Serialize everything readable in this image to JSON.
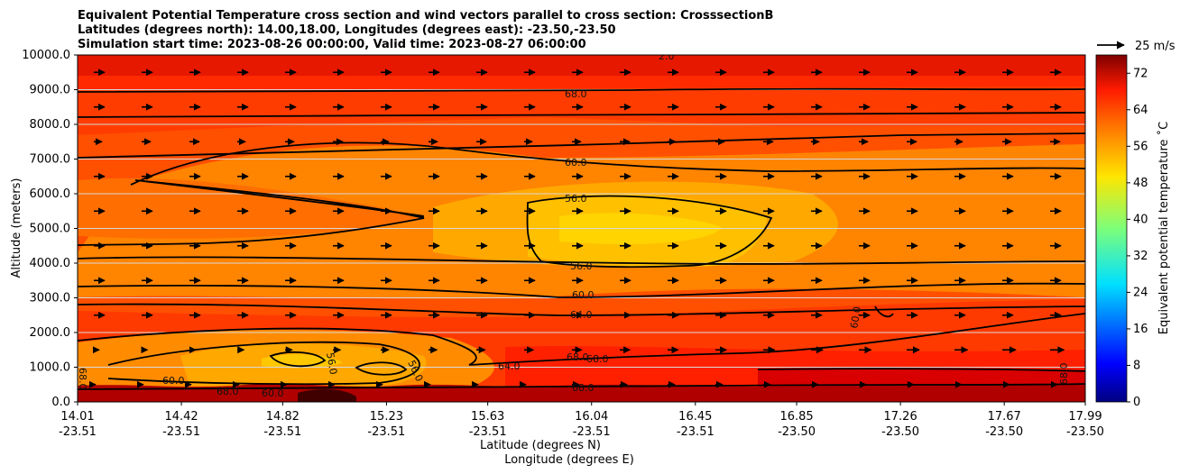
{
  "chart_data": {
    "type": "heatmap",
    "title_lines": [
      "Equivalent Potential Temperature cross section and wind vectors parallel to cross section: CrosssectionB",
      "Latitudes (degrees north): 14.00,18.00, Longitudes (degrees east): -23.50,-23.50",
      "Simulation start time: 2023-08-26 00:00:00, Valid time: 2023-08-27 06:00:00"
    ],
    "xlabel_lat": "Latitude (degrees N)",
    "xlabel_lon": "Longitude (degrees E)",
    "ylabel": "Altitude (meters)",
    "x_ticks": [
      {
        "lat": "14.01",
        "lon": "-23.51"
      },
      {
        "lat": "14.42",
        "lon": "-23.51"
      },
      {
        "lat": "14.82",
        "lon": "-23.51"
      },
      {
        "lat": "15.23",
        "lon": "-23.51"
      },
      {
        "lat": "15.63",
        "lon": "-23.51"
      },
      {
        "lat": "16.04",
        "lon": "-23.51"
      },
      {
        "lat": "16.45",
        "lon": "-23.51"
      },
      {
        "lat": "16.85",
        "lon": "-23.50"
      },
      {
        "lat": "17.26",
        "lon": "-23.50"
      },
      {
        "lat": "17.67",
        "lon": "-23.50"
      },
      {
        "lat": "17.99",
        "lon": "-23.50"
      }
    ],
    "x_range": [
      14.01,
      17.99
    ],
    "y_ticks": [
      "0.0",
      "1000.0",
      "2000.0",
      "3000.0",
      "4000.0",
      "5000.0",
      "6000.0",
      "7000.0",
      "8000.0",
      "9000.0",
      "10000.0"
    ],
    "y_range": [
      0,
      10000
    ],
    "grid": "horizontal",
    "colorbar": {
      "label": "Equivalent potential temperature ˚C",
      "ticks": [
        "0",
        "8",
        "16",
        "24",
        "32",
        "40",
        "48",
        "56",
        "64",
        "72"
      ],
      "range": [
        0,
        76
      ],
      "colormap": "jet"
    },
    "quiver_key": {
      "label": "25 m/s",
      "value": 25
    },
    "contour_labels": [
      "68.0",
      "60.0",
      "56.0",
      "56.0",
      "60.0",
      "64.0",
      "68.0",
      "68.0",
      "64.0",
      "60.0",
      "56.0",
      "56.0",
      "60.0",
      "68.0",
      "60.0",
      "68.0",
      "68.0",
      "2.0",
      "68.0"
    ]
  }
}
